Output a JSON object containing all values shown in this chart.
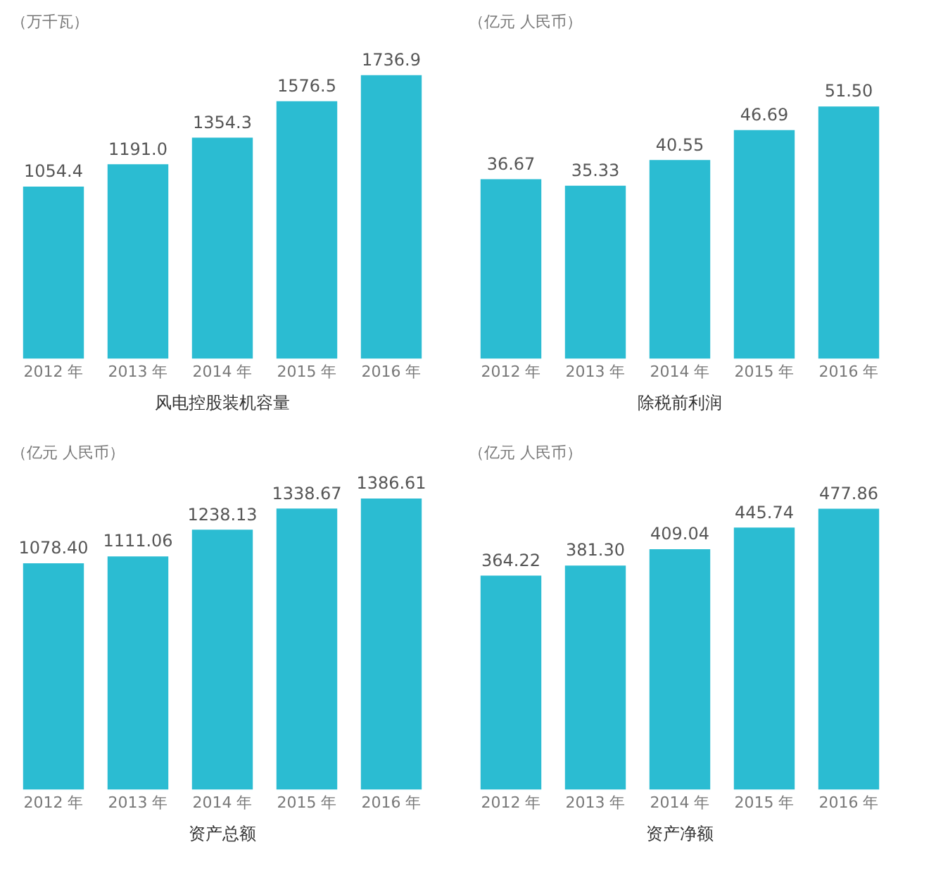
{
  "chart_data": [
    {
      "type": "bar",
      "title": "风电控股装机容量",
      "ylabel": "（万千瓦）",
      "categories": [
        "2012 年",
        "2013 年",
        "2014 年",
        "2015 年",
        "2016 年"
      ],
      "values": [
        1054.4,
        1191.0,
        1354.3,
        1576.5,
        1736.9
      ],
      "value_labels": [
        "1054.4",
        "1191.0",
        "1354.3",
        "1576.5",
        "1736.9"
      ],
      "color": "#2bbcd2",
      "grid": false,
      "legend": false
    },
    {
      "type": "bar",
      "title": "除税前利润",
      "ylabel": "（亿元 人民币）",
      "categories": [
        "2012 年",
        "2013 年",
        "2014 年",
        "2015 年",
        "2016 年"
      ],
      "values": [
        36.67,
        35.33,
        40.55,
        46.69,
        51.5
      ],
      "value_labels": [
        "36.67",
        "35.33",
        "40.55",
        "46.69",
        "51.50"
      ],
      "color": "#2bbcd2",
      "grid": false,
      "legend": false
    },
    {
      "type": "bar",
      "title": "资产总额",
      "ylabel": "（亿元 人民币）",
      "categories": [
        "2012 年",
        "2013 年",
        "2014 年",
        "2015 年",
        "2016 年"
      ],
      "values": [
        1078.4,
        1111.06,
        1238.13,
        1338.67,
        1386.61
      ],
      "value_labels": [
        "1078.40",
        "1111.06",
        "1238.13",
        "1338.67",
        "1386.61"
      ],
      "color": "#2bbcd2",
      "grid": false,
      "legend": false
    },
    {
      "type": "bar",
      "title": "资产净额",
      "ylabel": "（亿元 人民币）",
      "categories": [
        "2012 年",
        "2013 年",
        "2014 年",
        "2015 年",
        "2016 年"
      ],
      "values": [
        364.22,
        381.3,
        409.04,
        445.74,
        477.86
      ],
      "value_labels": [
        "364.22",
        "381.30",
        "409.04",
        "445.74",
        "477.86"
      ],
      "color": "#2bbcd2",
      "grid": false,
      "legend": false
    }
  ]
}
